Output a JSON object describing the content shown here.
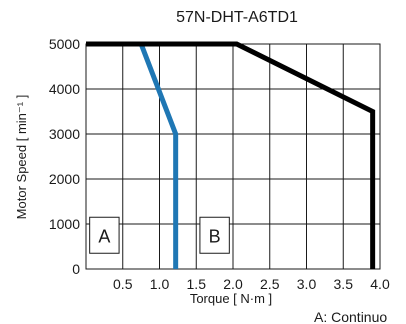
{
  "chart_data": {
    "type": "line",
    "title": "57N-DHT-A6TD1",
    "xlabel": "Torque [ N·m ]",
    "ylabel": "Motor Speed [ min⁻¹ ]",
    "xlim": [
      0,
      4.0
    ],
    "ylim": [
      0,
      5000
    ],
    "x_ticks": [
      "0.5",
      "1.0",
      "1.5",
      "2.0",
      "2.5",
      "3.0",
      "3.5",
      "4.0"
    ],
    "y_ticks": [
      "0",
      "1000",
      "2000",
      "3000",
      "4000",
      "5000"
    ],
    "grid": true,
    "series": [
      {
        "color": "#1f77b4",
        "points": [
          [
            0,
            5000
          ],
          [
            0.75,
            5000
          ],
          [
            1.22,
            3000
          ],
          [
            1.22,
            0
          ]
        ]
      },
      {
        "color": "#000000",
        "points": [
          [
            0,
            5000
          ],
          [
            2.05,
            5000
          ],
          [
            3.9,
            3500
          ],
          [
            3.9,
            0
          ]
        ]
      }
    ],
    "region_labels": [
      {
        "text": "A",
        "x_range": [
          0.05,
          0.45
        ],
        "y_range": [
          350,
          1150
        ]
      },
      {
        "text": "B",
        "x_range": [
          1.55,
          1.95
        ],
        "y_range": [
          350,
          1150
        ]
      }
    ],
    "note": "A: Continuo"
  }
}
